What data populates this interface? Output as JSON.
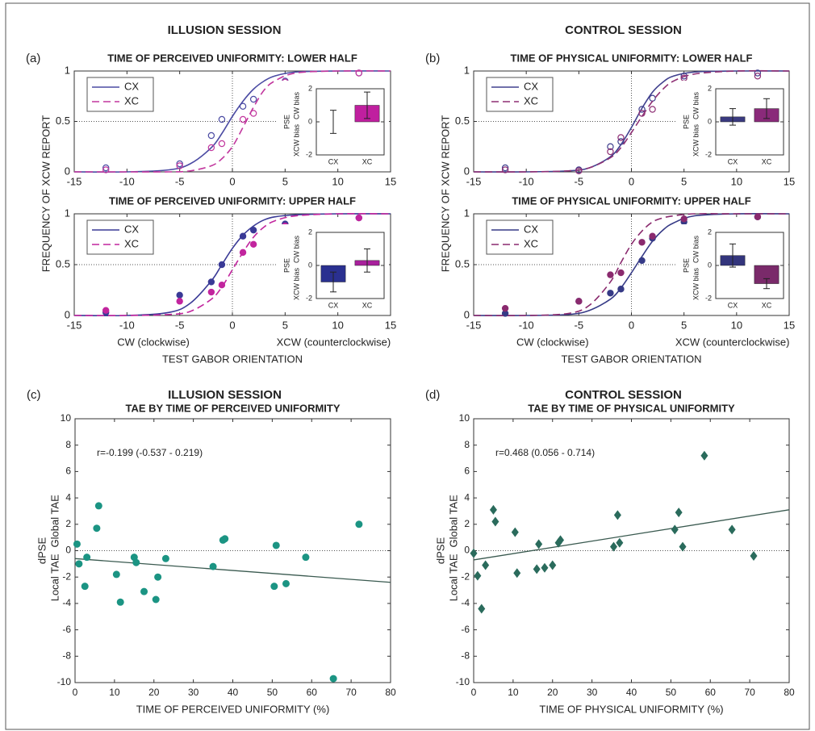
{
  "chart_data": [
    {
      "type": "line",
      "panel_label": "(a)",
      "title": "ILLUSION SESSION",
      "subtitle": "TIME OF PERCEIVED UNIFORMITY: LOWER HALF",
      "ylabel": "FREQUENCY OF XCW REPORT",
      "xlim": [
        -15,
        15
      ],
      "xticks": [
        -15,
        -10,
        -5,
        0,
        5,
        10,
        15
      ],
      "ylim": [
        0,
        1
      ],
      "yticks": [
        0,
        0.5,
        1
      ],
      "reference_lines": {
        "x": 0,
        "y": 0.5
      },
      "legend": "upper left",
      "curve_x": [
        -15,
        -10,
        -6,
        -4,
        -2,
        -1,
        0,
        1,
        2,
        3,
        4,
        6,
        10,
        15
      ],
      "points_x": [
        -12,
        -5,
        -2,
        -1,
        1,
        2,
        5,
        12
      ],
      "series": [
        {
          "name": "CX",
          "color": "#4b4ba3",
          "style": "solid",
          "marker": "open",
          "curve_values": [
            0,
            0,
            0.02,
            0.08,
            0.24,
            0.38,
            0.55,
            0.7,
            0.82,
            0.9,
            0.95,
            0.99,
            1,
            1
          ],
          "points_values": [
            0.04,
            0.08,
            0.36,
            0.52,
            0.65,
            0.72,
            0.9,
            0.98
          ]
        },
        {
          "name": "XC",
          "color": "#c2379e",
          "style": "dashed",
          "marker": "open",
          "curve_values": [
            0,
            0,
            0,
            0.01,
            0.06,
            0.13,
            0.25,
            0.44,
            0.64,
            0.81,
            0.9,
            0.98,
            1,
            1
          ],
          "points_values": [
            0.02,
            0.06,
            0.24,
            0.28,
            0.52,
            0.58,
            0.89,
            0.98
          ]
        }
      ],
      "inset": {
        "type": "bar",
        "categories": [
          "CX",
          "XC"
        ],
        "values": [
          0,
          1.0
        ],
        "errors": [
          0.7,
          0.8
        ],
        "colors": [
          "#2d2d8a",
          "#c01f9f"
        ],
        "ylim": [
          -2,
          2
        ],
        "yticks": [
          -2,
          0,
          2
        ],
        "ylabel": "PSE",
        "ylabel_low": "XCW bias",
        "ylabel_high": "CW bias"
      }
    },
    {
      "type": "line",
      "subtitle": "TIME OF PERCEIVED UNIFORMITY: UPPER HALF",
      "xlabel_left": "CW (clockwise)",
      "xlabel_right": "XCW (counterclockwise)",
      "xlabel": "TEST GABOR ORIENTATION",
      "xlim": [
        -15,
        15
      ],
      "xticks": [
        -15,
        -10,
        -5,
        0,
        5,
        10,
        15
      ],
      "ylim": [
        0,
        1
      ],
      "yticks": [
        0,
        0.5,
        1
      ],
      "reference_lines": {
        "x": 0,
        "y": 0.5
      },
      "legend": "upper left",
      "curve_x": [
        -15,
        -10,
        -6,
        -4,
        -2,
        -1,
        0,
        1,
        2,
        3,
        4,
        6,
        10,
        15
      ],
      "points_x": [
        -12,
        -5,
        -2,
        -1,
        1,
        2,
        5,
        12
      ],
      "series": [
        {
          "name": "CX",
          "color": "#3a3a96",
          "style": "solid",
          "marker": "filled",
          "curve_values": [
            0,
            0,
            0.03,
            0.12,
            0.34,
            0.5,
            0.66,
            0.79,
            0.88,
            0.94,
            0.97,
            0.99,
            1,
            1
          ],
          "points_values": [
            0.03,
            0.2,
            0.33,
            0.5,
            0.78,
            0.84,
            0.9,
            0.96
          ]
        },
        {
          "name": "XC",
          "color": "#c2259e",
          "style": "dashed",
          "marker": "filled",
          "curve_values": [
            0,
            0,
            0.01,
            0.04,
            0.16,
            0.28,
            0.45,
            0.62,
            0.77,
            0.87,
            0.93,
            0.98,
            1,
            1
          ],
          "points_values": [
            0.05,
            0.14,
            0.23,
            0.3,
            0.62,
            0.7,
            0.88,
            0.96
          ]
        }
      ],
      "inset": {
        "type": "bar",
        "categories": [
          "CX",
          "XC"
        ],
        "values": [
          -1.0,
          0.3
        ],
        "errors": [
          0.6,
          0.7
        ],
        "colors": [
          "#2a3090",
          "#a8209c"
        ],
        "ylim": [
          -2,
          2
        ],
        "yticks": [
          -2,
          0,
          2
        ],
        "ylabel": "PSE",
        "ylabel_low": "XCW bias",
        "ylabel_high": "CW bias"
      }
    },
    {
      "type": "line",
      "panel_label": "(b)",
      "title": "CONTROL SESSION",
      "subtitle": "TIME OF PHYSICAL UNIFORMITY: LOWER HALF",
      "ylabel": "FREQUENCY OF XCW REPORT",
      "xlim": [
        -15,
        15
      ],
      "xticks": [
        -15,
        -10,
        -5,
        0,
        5,
        10,
        15
      ],
      "ylim": [
        0,
        1
      ],
      "yticks": [
        0,
        0.5,
        1
      ],
      "reference_lines": {
        "x": 0,
        "y": 0.5
      },
      "legend": "upper left",
      "curve_x": [
        -15,
        -10,
        -6,
        -4,
        -2,
        -1,
        0,
        1,
        2,
        3,
        4,
        6,
        10,
        15
      ],
      "points_x": [
        -12,
        -5,
        -2,
        -1,
        1,
        2,
        5,
        12
      ],
      "series": [
        {
          "name": "CX",
          "color": "#40408e",
          "style": "solid",
          "marker": "open",
          "curve_values": [
            0,
            0,
            0.01,
            0.04,
            0.15,
            0.27,
            0.44,
            0.63,
            0.79,
            0.89,
            0.95,
            0.99,
            1,
            1
          ],
          "points_values": [
            0.04,
            0.02,
            0.25,
            0.3,
            0.62,
            0.73,
            0.95,
            0.98
          ]
        },
        {
          "name": "XC",
          "color": "#8e2f74",
          "style": "dashed",
          "marker": "open",
          "curve_values": [
            0,
            0,
            0.01,
            0.04,
            0.14,
            0.24,
            0.39,
            0.55,
            0.7,
            0.82,
            0.9,
            0.97,
            1,
            1
          ],
          "points_values": [
            0.02,
            0.01,
            0.2,
            0.34,
            0.58,
            0.62,
            0.93,
            0.95
          ]
        }
      ],
      "inset": {
        "type": "bar",
        "categories": [
          "CX",
          "XC"
        ],
        "values": [
          0.3,
          0.8
        ],
        "errors": [
          0.5,
          0.6
        ],
        "colors": [
          "#3a3a80",
          "#8a2a7a"
        ],
        "ylim": [
          -2,
          2
        ],
        "yticks": [
          -2,
          0,
          2
        ],
        "ylabel": "PSE",
        "ylabel_low": "XCW bias",
        "ylabel_high": "CW bias"
      }
    },
    {
      "type": "line",
      "subtitle": "TIME OF PHYSICAL UNIFORMITY: UPPER HALF",
      "xlabel_left": "CW (clockwise)",
      "xlabel_right": "XCW (counterclockwise)",
      "xlabel": "TEST GABOR ORIENTATION",
      "xlim": [
        -15,
        15
      ],
      "xticks": [
        -15,
        -10,
        -5,
        0,
        5,
        10,
        15
      ],
      "ylim": [
        0,
        1
      ],
      "yticks": [
        0,
        0.5,
        1
      ],
      "reference_lines": {
        "x": 0,
        "y": 0.5
      },
      "legend": "upper left",
      "curve_x": [
        -15,
        -10,
        -6,
        -4,
        -2,
        -1,
        0,
        1,
        2,
        3,
        4,
        6,
        10,
        15
      ],
      "points_x": [
        -12,
        -5,
        -2,
        -1,
        1,
        2,
        5,
        12
      ],
      "series": [
        {
          "name": "CX",
          "color": "#363a86",
          "style": "solid",
          "marker": "filled",
          "curve_values": [
            0,
            0,
            0.01,
            0.05,
            0.16,
            0.27,
            0.42,
            0.58,
            0.73,
            0.84,
            0.91,
            0.98,
            1,
            1
          ],
          "points_values": [
            0.02,
            0.14,
            0.22,
            0.26,
            0.54,
            0.76,
            0.92,
            0.97
          ]
        },
        {
          "name": "XC",
          "color": "#8a2a6e",
          "style": "dashed",
          "marker": "filled",
          "curve_values": [
            0,
            0,
            0.02,
            0.1,
            0.33,
            0.52,
            0.7,
            0.83,
            0.92,
            0.96,
            0.98,
            1,
            1,
            1
          ],
          "points_values": [
            0.07,
            0.14,
            0.4,
            0.42,
            0.72,
            0.78,
            0.95,
            0.97
          ]
        }
      ],
      "inset": {
        "type": "bar",
        "categories": [
          "CX",
          "XC"
        ],
        "values": [
          0.6,
          -1.1
        ],
        "errors": [
          0.7,
          0.3
        ],
        "colors": [
          "#33357c",
          "#7a2a6a"
        ],
        "ylim": [
          -2,
          2
        ],
        "yticks": [
          -2,
          0,
          2
        ],
        "ylabel": "PSE",
        "ylabel_low": "XCW bias",
        "ylabel_high": "CW bias"
      }
    },
    {
      "type": "scatter",
      "panel_label": "(c)",
      "title": "ILLUSION SESSION",
      "subtitle": "TAE BY TIME OF PERCEIVED UNIFORMITY",
      "annotation": "r=-0.199 (-0.537 - 0.219)",
      "ylabel": "dPSE",
      "ylabel_low": "Local TAE",
      "ylabel_high": "Global TAE",
      "xlabel": "TIME OF PERCEIVED UNIFORMITY (%)",
      "xlim": [
        0,
        80
      ],
      "xticks": [
        0,
        10,
        20,
        30,
        40,
        50,
        60,
        70,
        80
      ],
      "ylim": [
        -10,
        10
      ],
      "yticks": [
        -10,
        -8,
        -6,
        -4,
        -2,
        0,
        2,
        4,
        6,
        8,
        10
      ],
      "reference_lines": {
        "y": 0
      },
      "color": "#1b9483",
      "marker": "circle",
      "x": [
        0.5,
        1,
        2.5,
        3,
        5.5,
        6,
        10.5,
        11.5,
        15,
        15.5,
        17.5,
        20.5,
        21,
        23,
        35,
        37.5,
        38,
        50.5,
        51,
        53.5,
        58.5,
        65.5,
        72
      ],
      "values": [
        0.5,
        -1,
        -2.7,
        -0.5,
        1.7,
        3.4,
        -1.8,
        -3.9,
        -0.5,
        -0.9,
        -3.1,
        -3.7,
        -2,
        -0.6,
        -1.2,
        0.8,
        0.9,
        -2.7,
        0.4,
        -2.5,
        -0.5,
        -9.7,
        2
      ],
      "fit": {
        "x": [
          0,
          80
        ],
        "values": [
          -0.6,
          -2.4
        ],
        "color": "#3a5a50"
      }
    },
    {
      "type": "scatter",
      "panel_label": "(d)",
      "title": "CONTROL SESSION",
      "subtitle": "TAE BY TIME OF PHYSICAL UNIFORMITY",
      "annotation": "r=0.468 (0.056 - 0.714)",
      "ylabel": "dPSE",
      "ylabel_low": "Local TAE",
      "ylabel_high": "Global TAE",
      "xlabel": "TIME OF PHYSICAL UNIFORMITY (%)",
      "xlim": [
        0,
        80
      ],
      "xticks": [
        0,
        10,
        20,
        30,
        40,
        50,
        60,
        70,
        80
      ],
      "ylim": [
        -10,
        10
      ],
      "yticks": [
        -10,
        -8,
        -6,
        -4,
        -2,
        0,
        2,
        4,
        6,
        8,
        10
      ],
      "reference_lines": {
        "y": 0
      },
      "color": "#2a6b5c",
      "marker": "diamond",
      "x": [
        0,
        1,
        2,
        3,
        5,
        5.5,
        10.5,
        11,
        16,
        16.5,
        18,
        20,
        21.5,
        22,
        35.5,
        36.5,
        37,
        51,
        52,
        53,
        58.5,
        65.5,
        71
      ],
      "values": [
        -0.2,
        -1.9,
        -4.4,
        -1.1,
        3.1,
        2.2,
        1.4,
        -1.7,
        -1.4,
        0.5,
        -1.3,
        -1.1,
        0.6,
        0.8,
        0.3,
        2.7,
        0.6,
        1.6,
        2.9,
        0.3,
        7.2,
        1.6,
        -0.4
      ],
      "fit": {
        "x": [
          0,
          80
        ],
        "values": [
          -0.7,
          3.1
        ],
        "color": "#3a5a50"
      }
    }
  ]
}
